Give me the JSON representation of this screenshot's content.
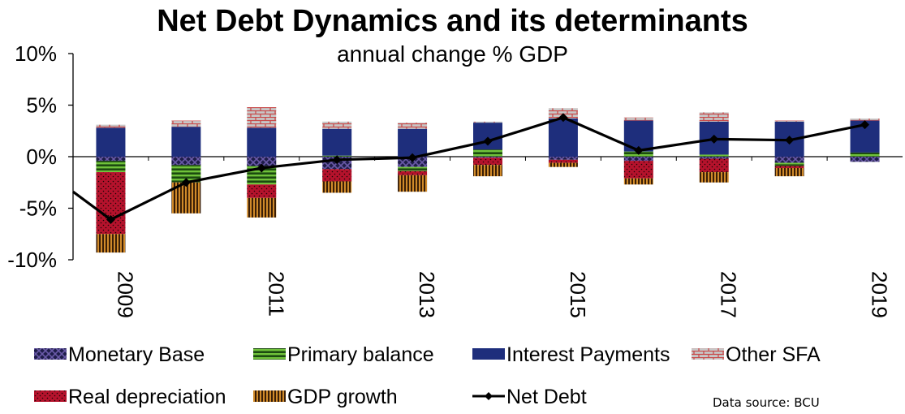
{
  "chart_data": {
    "type": "bar",
    "title": "Net Debt Dynamics and its determinants",
    "subtitle": "annual change % GDP",
    "source": "Data source: BCU",
    "ylim": [
      -10,
      10
    ],
    "y_ticks": [
      10,
      5,
      0,
      -5,
      -10
    ],
    "y_tick_labels": [
      "10%",
      "5%",
      "0%",
      "-5%",
      "-10%"
    ],
    "categories": [
      "2009",
      "2010",
      "2011",
      "2012",
      "2013",
      "2014",
      "2015",
      "2016",
      "2017",
      "2018",
      "2019"
    ],
    "x_tick_labels": [
      "2009",
      "",
      "2011",
      "",
      "2013",
      "",
      "2015",
      "",
      "2017",
      "",
      "2019"
    ],
    "series": [
      {
        "name": "Monetary Base",
        "key": "monetary_base",
        "color": "#1f1d4a",
        "values": [
          -0.4,
          -0.8,
          -0.9,
          -1.2,
          -1.0,
          -0.1,
          -0.3,
          -0.4,
          -0.2,
          -0.6,
          -0.5
        ]
      },
      {
        "name": "Primary balance",
        "key": "primary_balance",
        "color": "#3f7f1e",
        "values": [
          -1.1,
          -1.7,
          -1.8,
          0.1,
          -0.4,
          0.7,
          0.0,
          0.5,
          0.2,
          -0.3,
          0.4
        ]
      },
      {
        "name": "Interest Payments",
        "key": "interest_payments",
        "color": "#1e2e7c",
        "values": [
          2.8,
          2.9,
          2.8,
          2.6,
          2.7,
          2.6,
          3.7,
          3.0,
          3.2,
          3.4,
          3.1
        ]
      },
      {
        "name": "Other SFA",
        "key": "other_sfa",
        "color": "#c94a4a",
        "values": [
          0.3,
          0.6,
          2.0,
          0.7,
          0.6,
          0.1,
          1.0,
          0.3,
          0.9,
          0.1,
          0.2
        ]
      },
      {
        "name": "Real depreciation",
        "key": "real_depreciation",
        "color": "#b5122c",
        "values": [
          -6.0,
          0.0,
          -1.3,
          -1.2,
          -0.4,
          -0.7,
          -0.3,
          -1.7,
          -1.3,
          -0.2,
          0.0
        ]
      },
      {
        "name": "GDP growth",
        "key": "gdp_growth",
        "color": "#b46e1e",
        "values": [
          -1.8,
          -3.0,
          -1.9,
          -1.1,
          -1.6,
          -1.1,
          -0.4,
          -0.6,
          -1.0,
          -0.8,
          0.0
        ]
      },
      {
        "name": "Net Debt",
        "key": "net_debt",
        "type": "line",
        "color": "#000000",
        "values": [
          -6.1,
          -2.5,
          -1.1,
          -0.3,
          -0.1,
          1.5,
          3.8,
          0.6,
          1.7,
          1.6,
          3.1
        ]
      }
    ]
  }
}
